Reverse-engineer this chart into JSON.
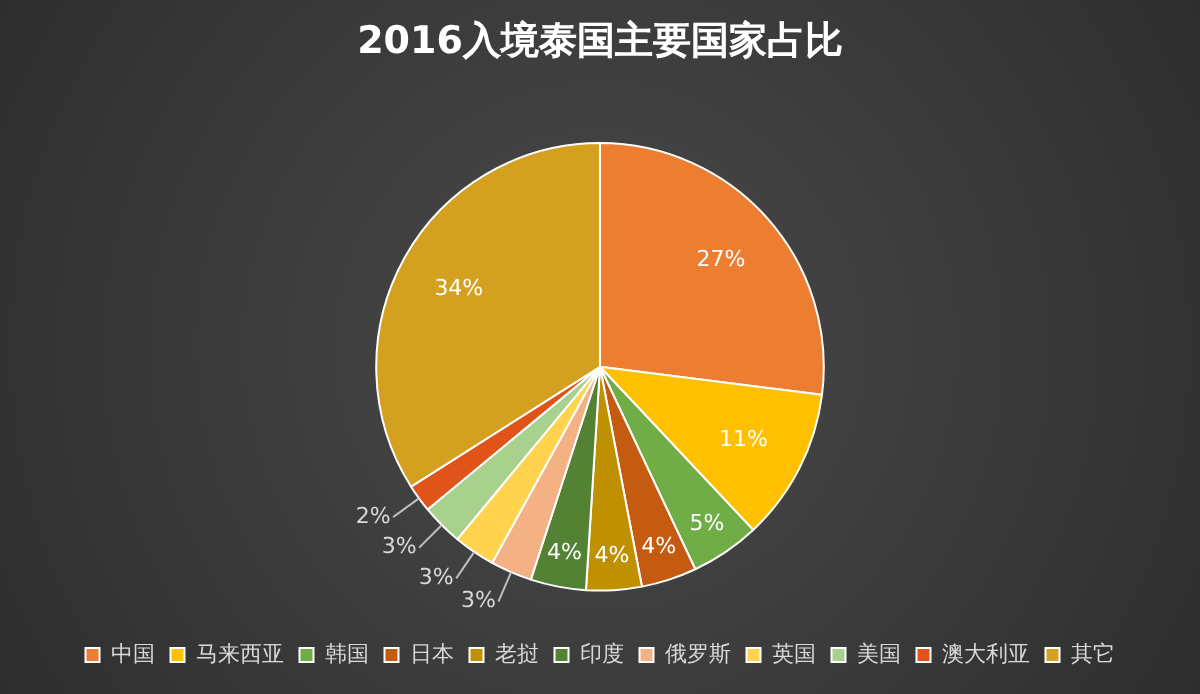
{
  "chart_data": {
    "type": "pie",
    "title": "2016入境泰国主要国家占比",
    "categories": [
      "中国",
      "马来西亚",
      "韩国",
      "日本",
      "老挝",
      "印度",
      "俄罗斯",
      "英国",
      "美国",
      "澳大利亚",
      "其它"
    ],
    "values": [
      27,
      11,
      5,
      4,
      4,
      4,
      3,
      3,
      3,
      2,
      34
    ],
    "value_labels": [
      "27%",
      "11%",
      "5%",
      "4%",
      "4%",
      "4%",
      "3%",
      "3%",
      "3%",
      "2%",
      "34%"
    ],
    "colors": [
      "#ed7d31",
      "#ffc000",
      "#70ad47",
      "#c55a11",
      "#bf9000",
      "#548235",
      "#f4b183",
      "#ffd34d",
      "#a9d18e",
      "#e0541a",
      "#d4a020"
    ],
    "legend": "bottom"
  }
}
